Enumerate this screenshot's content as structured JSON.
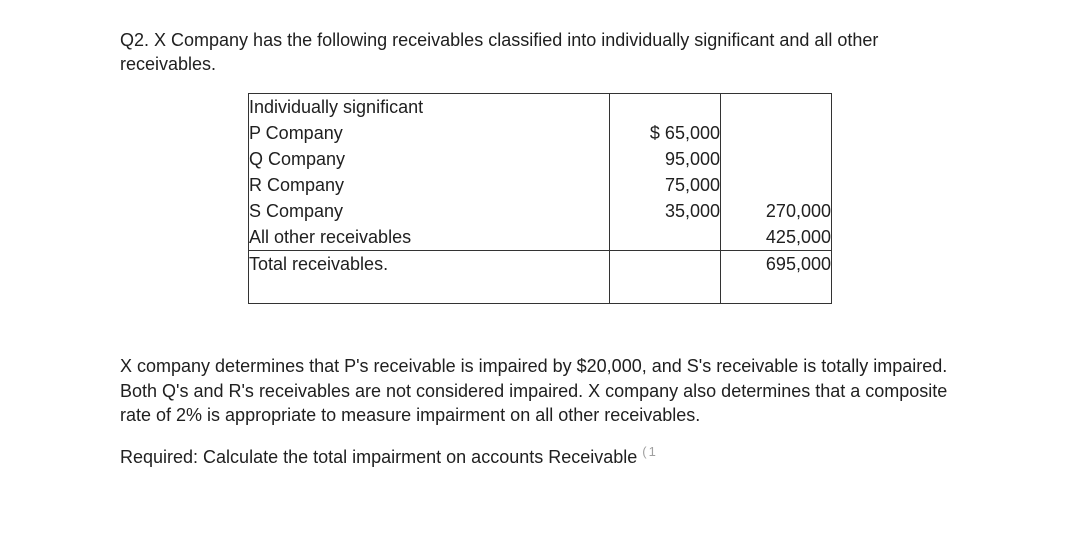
{
  "intro": "Q2. X Company has the following receivables classified into individually significant and all other receivables.",
  "table": {
    "section1": {
      "heading": "Individually significant",
      "items": [
        {
          "label": "P Company",
          "value": "$ 65,000"
        },
        {
          "label": "Q Company",
          "value": "95,000"
        },
        {
          "label": "R Company",
          "value": "75,000"
        },
        {
          "label": "S Company",
          "value": "35,000"
        }
      ],
      "subtotal": "270,000",
      "all_other_label": "All other receivables",
      "all_other_value": "425,000"
    },
    "section2": {
      "label": "Total receivables.",
      "value": "695,000"
    }
  },
  "para2": "X company determines that P's receivable is impaired by $20,000, and S's receivable is totally impaired. Both Q's and R's receivables are not considered impaired. X company also determines that a composite rate of 2% is appropriate to measure impairment on all other receivables.",
  "required": "Required: Calculate the total impairment on accounts Receivable ",
  "footnote_mark": "(1"
}
